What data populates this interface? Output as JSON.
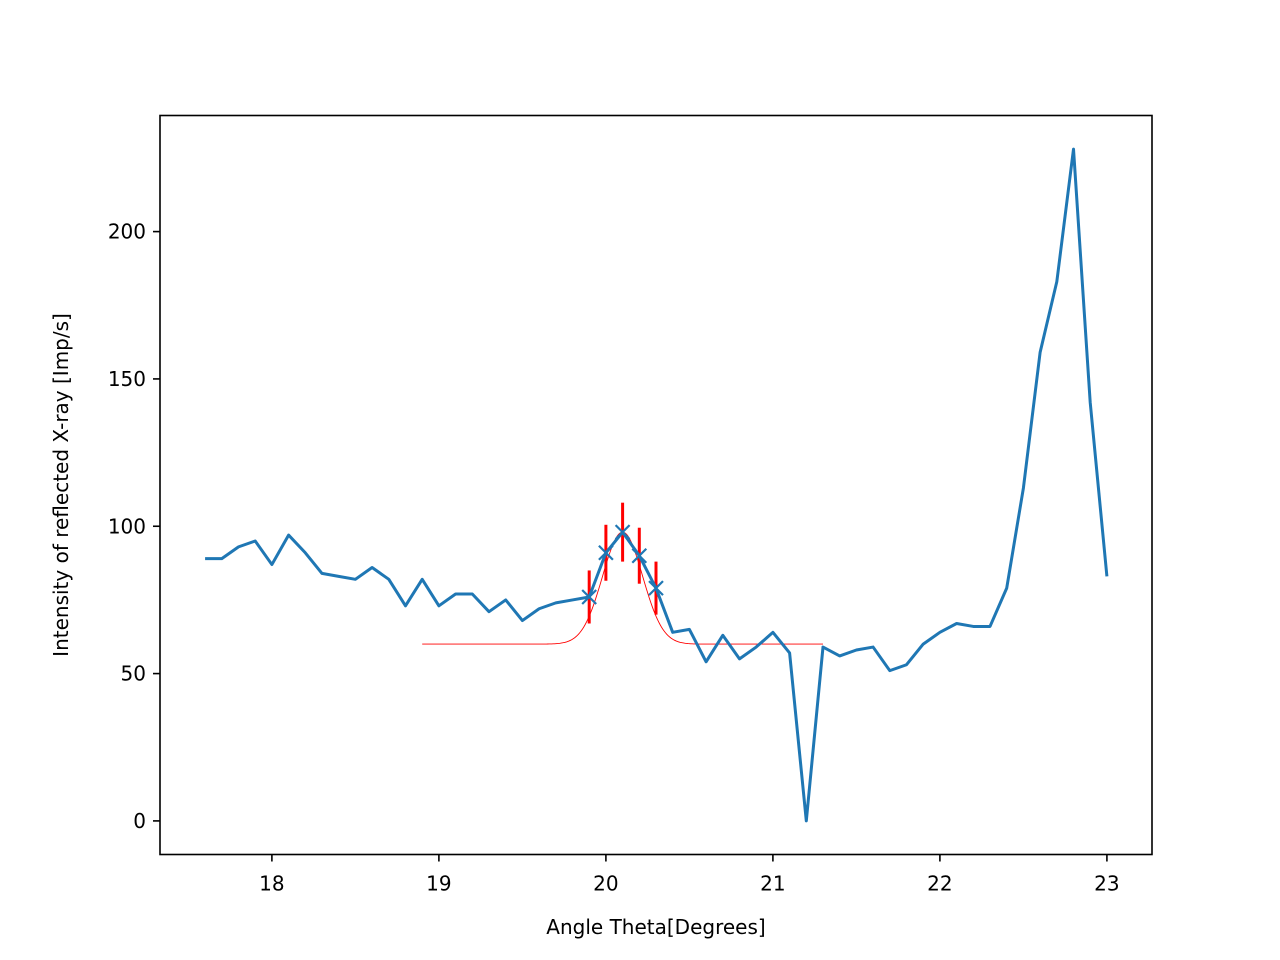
{
  "chart_data": {
    "type": "line",
    "title": "",
    "xlabel": "Angle Theta[Degrees]",
    "ylabel": "Intensity of reflected X-ray [Imp/s]",
    "xlim": [
      17.33,
      23.27
    ],
    "ylim": [
      -11.4,
      239.4
    ],
    "xticks": [
      "18",
      "19",
      "20",
      "21",
      "22",
      "23"
    ],
    "xtick_values": [
      18,
      19,
      20,
      21,
      22,
      23
    ],
    "yticks": [
      "0",
      "50",
      "100",
      "150",
      "200"
    ],
    "ytick_values": [
      0,
      50,
      100,
      150,
      200
    ],
    "grid": false,
    "colors": {
      "series": "#1f77b4",
      "fit": "#ff0000",
      "errorbar": "#ff0000",
      "axes": "#000000"
    },
    "series": [
      {
        "role": "data",
        "x": [
          17.6,
          17.7,
          17.8,
          17.9,
          18.0,
          18.1,
          18.2,
          18.3,
          18.4,
          18.5,
          18.6,
          18.7,
          18.8,
          18.9,
          19.0,
          19.1,
          19.2,
          19.3,
          19.4,
          19.5,
          19.6,
          19.7,
          19.8,
          19.9,
          20.0,
          20.1,
          20.2,
          20.3,
          20.4,
          20.5,
          20.6,
          20.7,
          20.8,
          20.9,
          21.0,
          21.1,
          21.2,
          21.3,
          21.4,
          21.5,
          21.6,
          21.7,
          21.8,
          21.9,
          22.0,
          22.1,
          22.2,
          22.3,
          22.4,
          22.5,
          22.6,
          22.7,
          22.8,
          22.9,
          23.0
        ],
        "y": [
          89,
          89,
          93,
          95,
          87,
          97,
          91,
          84,
          83,
          82,
          86,
          82,
          73,
          82,
          73,
          77,
          77,
          71,
          75,
          68,
          72,
          74,
          75,
          76,
          91,
          98,
          90,
          79,
          64,
          65,
          54,
          63,
          55,
          59,
          64,
          57,
          0,
          59,
          56,
          58,
          59,
          51,
          53,
          60,
          64,
          67,
          66,
          66,
          79,
          113,
          159,
          183,
          228,
          142,
          83
        ]
      },
      {
        "role": "fit-points",
        "x": [
          19.9,
          20.0,
          20.1,
          20.2,
          20.3
        ],
        "y": [
          76,
          91,
          98,
          90,
          79
        ],
        "yerr": [
          9,
          9.5,
          10,
          9.5,
          9
        ]
      },
      {
        "role": "fit",
        "model": "gaussian",
        "baseline": 60,
        "amplitude": 38,
        "center": 20.1,
        "sigma": 0.12,
        "x_range": [
          18.9,
          21.3
        ]
      }
    ]
  }
}
